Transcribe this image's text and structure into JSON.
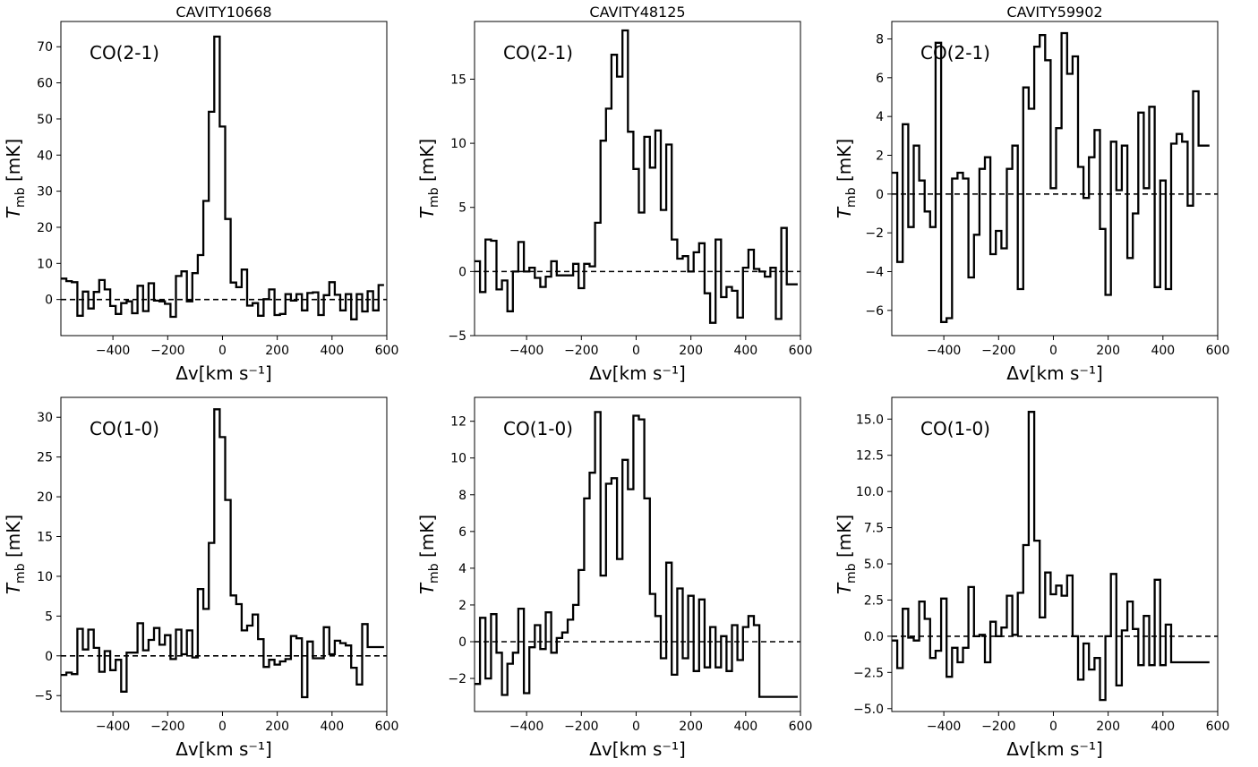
{
  "chart_data": [
    {
      "type": "line",
      "step": true,
      "title": "CAVITY10668",
      "line_label": "CO(2-1)",
      "xlabel": "Δv[km s⁻¹]",
      "ylabel": "T_mb [mK]",
      "xlim": [
        -590,
        600
      ],
      "ylim": [
        -10,
        77
      ],
      "xticks": [
        -400,
        -200,
        0,
        200,
        400,
        600
      ],
      "yticks": [
        0,
        10,
        20,
        30,
        40,
        50,
        60,
        70
      ],
      "baseline": 0,
      "x": [
        -590,
        -570,
        -550,
        -530,
        -510,
        -490,
        -470,
        -450,
        -430,
        -410,
        -390,
        -370,
        -350,
        -330,
        -310,
        -290,
        -270,
        -250,
        -230,
        -210,
        -190,
        -170,
        -150,
        -130,
        -110,
        -90,
        -70,
        -50,
        -30,
        -10,
        10,
        30,
        50,
        70,
        90,
        110,
        130,
        150,
        170,
        190,
        210,
        230,
        250,
        270,
        290,
        310,
        330,
        350,
        370,
        390,
        410,
        430,
        450,
        470,
        490,
        510,
        530,
        550,
        570,
        590
      ],
      "y": [
        5.8,
        5.1,
        4.8,
        -4.5,
        2.2,
        -2.5,
        2.1,
        5.4,
        2.8,
        -1.8,
        -4.0,
        -1.0,
        -0.5,
        -3.8,
        3.8,
        -3.2,
        4.5,
        -0.3,
        -0.5,
        -1.2,
        -4.8,
        6.5,
        7.8,
        -0.5,
        7.3,
        12.3,
        27.3,
        52.0,
        72.8,
        47.9,
        22.3,
        4.7,
        3.4,
        8.3,
        -1.7,
        -1.0,
        -4.5,
        0.1,
        2.8,
        -4.3,
        -4.0,
        1.5,
        -0.3,
        1.5,
        -3.0,
        1.8,
        2.0,
        -4.3,
        1.2,
        4.8,
        1.3,
        -3.0,
        1.5,
        -5.5,
        1.5,
        -3.3,
        2.3,
        -3.0,
        4.0,
        4.0
      ]
    },
    {
      "type": "line",
      "step": true,
      "title": "CAVITY48125",
      "line_label": "CO(2-1)",
      "xlabel": "Δv[km s⁻¹]",
      "ylabel": "T_mb [mK]",
      "xlim": [
        -590,
        600
      ],
      "ylim": [
        -5,
        19.5
      ],
      "xticks": [
        -400,
        -200,
        0,
        200,
        400,
        600
      ],
      "yticks": [
        -5,
        0,
        5,
        10,
        15
      ],
      "baseline": 0,
      "x": [
        -590,
        -570,
        -550,
        -530,
        -510,
        -490,
        -470,
        -450,
        -430,
        -410,
        -390,
        -370,
        -350,
        -330,
        -310,
        -290,
        -270,
        -250,
        -230,
        -210,
        -190,
        -170,
        -150,
        -130,
        -110,
        -90,
        -70,
        -50,
        -30,
        -10,
        10,
        30,
        50,
        70,
        90,
        110,
        130,
        150,
        170,
        190,
        210,
        230,
        250,
        270,
        290,
        310,
        330,
        350,
        370,
        390,
        410,
        430,
        450,
        470,
        490,
        510,
        530,
        550,
        570,
        590
      ],
      "y": [
        0.8,
        -1.6,
        2.5,
        2.4,
        -1.4,
        -0.7,
        -3.1,
        0.0,
        2.3,
        0.0,
        0.3,
        -0.5,
        -1.2,
        -0.4,
        0.8,
        -0.3,
        -0.3,
        -0.3,
        0.6,
        -1.3,
        0.6,
        0.4,
        3.8,
        10.2,
        12.7,
        16.9,
        15.2,
        18.8,
        10.9,
        8.0,
        4.6,
        10.5,
        8.1,
        11.0,
        4.8,
        9.9,
        2.5,
        1.0,
        1.2,
        0.0,
        1.5,
        2.2,
        -1.7,
        -4.0,
        2.5,
        -2.0,
        -1.2,
        -1.5,
        -3.6,
        0.3,
        1.7,
        0.2,
        0.0,
        -0.4,
        0.3,
        -3.7,
        3.4,
        -1.0,
        -1.0,
        -1.0
      ]
    },
    {
      "type": "line",
      "step": true,
      "title": "CAVITY59902",
      "line_label": "CO(2-1)",
      "xlabel": "Δv[km s⁻¹]",
      "ylabel": "T_mb [mK]",
      "xlim": [
        -590,
        600
      ],
      "ylim": [
        -7.3,
        8.9
      ],
      "xticks": [
        -400,
        -200,
        0,
        200,
        400,
        600
      ],
      "yticks": [
        -6,
        -4,
        -2,
        0,
        2,
        4,
        6,
        8
      ],
      "baseline": 0,
      "x": [
        -590,
        -570,
        -550,
        -530,
        -510,
        -490,
        -470,
        -450,
        -430,
        -410,
        -390,
        -370,
        -350,
        -330,
        -310,
        -290,
        -270,
        -250,
        -230,
        -210,
        -190,
        -170,
        -150,
        -130,
        -110,
        -90,
        -70,
        -50,
        -30,
        -10,
        10,
        30,
        50,
        70,
        90,
        110,
        130,
        150,
        170,
        190,
        210,
        230,
        250,
        270,
        290,
        310,
        330,
        350,
        370,
        390,
        410,
        430,
        450,
        470,
        490,
        510,
        530,
        550,
        570
      ],
      "y": [
        1.1,
        -3.5,
        3.6,
        -1.7,
        2.5,
        0.7,
        -0.9,
        -1.7,
        7.8,
        -6.6,
        -6.4,
        0.8,
        1.1,
        0.8,
        -4.3,
        -2.1,
        1.3,
        1.9,
        -3.1,
        -1.9,
        -2.8,
        1.3,
        2.5,
        -4.9,
        5.5,
        4.4,
        7.6,
        8.2,
        6.9,
        0.3,
        3.4,
        8.3,
        6.2,
        7.1,
        1.4,
        -0.2,
        1.9,
        3.3,
        -1.8,
        -5.2,
        2.7,
        0.2,
        2.5,
        -3.3,
        -1.0,
        4.2,
        0.3,
        4.5,
        -4.8,
        0.7,
        -4.9,
        2.6,
        3.1,
        2.7,
        -0.6,
        5.3,
        2.5,
        2.5,
        2.5
      ]
    },
    {
      "type": "line",
      "step": true,
      "title": "",
      "line_label": "CO(1-0)",
      "xlabel": "Δv[km s⁻¹]",
      "ylabel": "T_mb [mK]",
      "xlim": [
        -590,
        600
      ],
      "ylim": [
        -7,
        32.5
      ],
      "xticks": [
        -400,
        -200,
        0,
        200,
        400,
        600
      ],
      "yticks": [
        -5,
        0,
        5,
        10,
        15,
        20,
        25,
        30
      ],
      "baseline": 0,
      "x": [
        -590,
        -570,
        -550,
        -530,
        -510,
        -490,
        -470,
        -450,
        -430,
        -410,
        -390,
        -370,
        -350,
        -330,
        -310,
        -290,
        -270,
        -250,
        -230,
        -210,
        -190,
        -170,
        -150,
        -130,
        -110,
        -90,
        -70,
        -50,
        -30,
        -10,
        10,
        30,
        50,
        70,
        90,
        110,
        130,
        150,
        170,
        190,
        210,
        230,
        250,
        270,
        290,
        310,
        330,
        350,
        370,
        390,
        410,
        430,
        450,
        470,
        490,
        510,
        530,
        550,
        570,
        590
      ],
      "y": [
        -2.4,
        -2.1,
        -2.3,
        3.4,
        0.8,
        3.3,
        1.0,
        -2.0,
        0.6,
        -1.8,
        -0.5,
        -4.5,
        0.4,
        0.4,
        4.1,
        0.7,
        2.0,
        3.5,
        1.4,
        2.6,
        -0.4,
        3.3,
        0.2,
        3.2,
        -0.2,
        8.4,
        5.9,
        14.2,
        31.0,
        27.5,
        19.6,
        7.6,
        6.5,
        3.2,
        3.8,
        5.2,
        2.1,
        -1.4,
        -0.5,
        -1.1,
        -0.7,
        -0.4,
        2.5,
        2.2,
        -5.2,
        1.8,
        -0.3,
        -0.3,
        3.6,
        0.2,
        1.9,
        1.6,
        1.3,
        -1.5,
        -3.6,
        4.0,
        1.1,
        1.1,
        1.1,
        1.1
      ]
    },
    {
      "type": "line",
      "step": true,
      "title": "",
      "line_label": "CO(1-0)",
      "xlabel": "Δv[km s⁻¹]",
      "ylabel": "T_mb [mK]",
      "xlim": [
        -590,
        600
      ],
      "ylim": [
        -3.8,
        13.3
      ],
      "xticks": [
        -400,
        -200,
        0,
        200,
        400,
        600
      ],
      "yticks": [
        -2,
        0,
        2,
        4,
        6,
        8,
        10,
        12
      ],
      "baseline": 0,
      "x": [
        -590,
        -570,
        -550,
        -530,
        -510,
        -490,
        -470,
        -450,
        -430,
        -410,
        -390,
        -370,
        -350,
        -330,
        -310,
        -290,
        -270,
        -250,
        -230,
        -210,
        -190,
        -170,
        -150,
        -130,
        -110,
        -90,
        -70,
        -50,
        -30,
        -10,
        10,
        30,
        50,
        70,
        90,
        110,
        130,
        150,
        170,
        190,
        210,
        230,
        250,
        270,
        290,
        310,
        330,
        350,
        370,
        390,
        410,
        430,
        450,
        470,
        490,
        510,
        530,
        550,
        570,
        590
      ],
      "y": [
        -2.3,
        1.3,
        -2.0,
        1.5,
        -0.6,
        -2.9,
        -1.2,
        -0.6,
        1.8,
        -2.8,
        -0.3,
        0.9,
        -0.4,
        1.6,
        -0.6,
        0.2,
        0.5,
        1.2,
        2.0,
        3.9,
        7.8,
        9.2,
        12.5,
        3.6,
        8.6,
        8.9,
        4.5,
        9.9,
        8.3,
        12.3,
        12.1,
        7.8,
        2.6,
        1.4,
        -0.9,
        4.3,
        -1.8,
        2.9,
        -0.9,
        2.5,
        -1.6,
        2.3,
        -1.4,
        0.8,
        -1.4,
        0.3,
        -1.6,
        0.9,
        -1.0,
        0.8,
        1.4,
        0.9,
        -3.0,
        -3.0,
        -3.0,
        -3.0,
        -3.0,
        -3.0,
        -3.0,
        -3.0
      ]
    },
    {
      "type": "line",
      "step": true,
      "title": "",
      "line_label": "CO(1-0)",
      "xlabel": "Δv[km s⁻¹]",
      "ylabel": "T_mb [mK]",
      "xlim": [
        -590,
        600
      ],
      "ylim": [
        -5.2,
        16.5
      ],
      "xticks": [
        -400,
        -200,
        0,
        200,
        400,
        600
      ],
      "yticks": [
        -5.0,
        -2.5,
        0.0,
        2.5,
        5.0,
        7.5,
        10.0,
        12.5,
        15.0
      ],
      "baseline": 0,
      "x": [
        -590,
        -570,
        -550,
        -530,
        -510,
        -490,
        -470,
        -450,
        -430,
        -410,
        -390,
        -370,
        -350,
        -330,
        -310,
        -290,
        -270,
        -250,
        -230,
        -210,
        -190,
        -170,
        -150,
        -130,
        -110,
        -90,
        -70,
        -50,
        -30,
        -10,
        10,
        30,
        50,
        70,
        90,
        110,
        130,
        150,
        170,
        190,
        210,
        230,
        250,
        270,
        290,
        310,
        330,
        350,
        370,
        390,
        410,
        430,
        450,
        470,
        490,
        510,
        530,
        550,
        570
      ],
      "y": [
        -0.3,
        -2.2,
        1.9,
        -0.1,
        -0.3,
        2.4,
        1.2,
        -1.5,
        -1.0,
        2.6,
        -2.8,
        -0.8,
        -1.8,
        -0.8,
        3.4,
        0.0,
        0.1,
        -1.8,
        1.0,
        0.0,
        0.6,
        2.8,
        0.1,
        3.0,
        6.3,
        15.5,
        6.6,
        1.3,
        4.4,
        2.9,
        3.5,
        2.8,
        4.2,
        0.0,
        -3.0,
        -0.5,
        -2.3,
        -1.5,
        -4.4,
        0.0,
        4.3,
        -3.4,
        0.4,
        2.4,
        0.5,
        -2.0,
        1.4,
        -2.0,
        3.9,
        -2.0,
        0.8,
        -1.8,
        -1.8,
        -1.8,
        -1.8,
        -1.8,
        -1.8,
        -1.8,
        -1.8
      ]
    }
  ]
}
